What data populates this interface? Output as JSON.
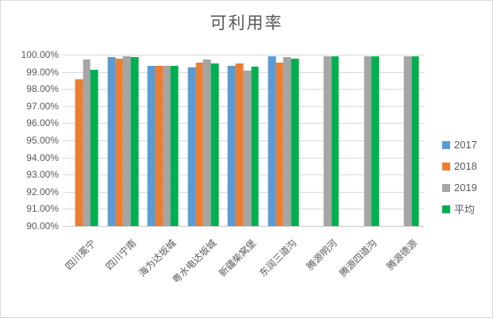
{
  "title": "可利用率",
  "chart_data": {
    "type": "bar",
    "title": "可利用率",
    "categories": [
      "四川冕宁",
      "四川宁南",
      "海为达坂城",
      "粤水电达坂城",
      "新疆柴窝堡",
      "东润三道沟",
      "腾源明河",
      "腾源四道沟",
      "腾源德源"
    ],
    "series": [
      {
        "name": "2017",
        "color": "#5B9BD5",
        "values": [
          null,
          99.85,
          99.35,
          99.28,
          99.37,
          99.92,
          null,
          null,
          null
        ]
      },
      {
        "name": "2018",
        "color": "#ED7D31",
        "values": [
          98.55,
          99.78,
          99.37,
          99.55,
          99.48,
          99.55,
          null,
          null,
          null
        ]
      },
      {
        "name": "2019",
        "color": "#A5A5A5",
        "values": [
          99.7,
          99.92,
          99.35,
          99.7,
          99.07,
          99.88,
          99.9,
          99.9,
          99.9
        ]
      },
      {
        "name": "平均",
        "color": "#00B050",
        "values": [
          99.13,
          99.85,
          99.36,
          99.51,
          99.31,
          99.78,
          99.9,
          99.9,
          99.9
        ]
      }
    ],
    "ylim": [
      90,
      100
    ],
    "yticks": [
      "100.00%",
      "99.00%",
      "98.00%",
      "97.00%",
      "96.00%",
      "95.00%",
      "94.00%",
      "93.00%",
      "92.00%",
      "91.00%",
      "90.00%"
    ],
    "grid": true,
    "legend_position": "right",
    "colors": {
      "axis_text": "#595959",
      "title_text": "#595959",
      "gridline": "#D9D9D9",
      "background": "#FFFFFF",
      "border": "#D9D9D9"
    }
  }
}
